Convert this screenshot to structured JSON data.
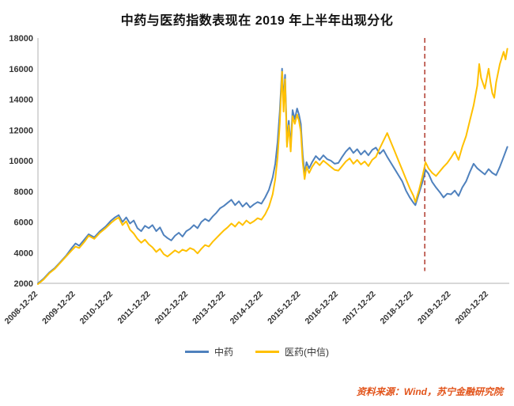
{
  "page": {
    "title": "中药与医药指数表现在 2019 年上半年出现分化",
    "source_note": "资料来源：Wind，苏宁金融研究院"
  },
  "chart_data": {
    "type": "line",
    "title": "中药与医药指数表现在 2019 年上半年出现分化",
    "xlabel": "",
    "ylabel": "",
    "x_unit": "years since 2008-12-22",
    "x_range": [
      0,
      12.55
    ],
    "ylim": [
      2000,
      18000
    ],
    "y_ticks": [
      2000,
      4000,
      6000,
      8000,
      10000,
      12000,
      14000,
      16000,
      18000
    ],
    "x_tick_positions": [
      0,
      1,
      2,
      3,
      4,
      5,
      6,
      7,
      8,
      9,
      10,
      11,
      12
    ],
    "x_tick_labels": [
      "2008-12-22",
      "2009-12-22",
      "2010-12-22",
      "2011-12-22",
      "2012-12-22",
      "2013-12-22",
      "2014-12-22",
      "2015-12-22",
      "2016-12-22",
      "2017-12-22",
      "2018-12-22",
      "2019-12-22",
      "2020-12-22"
    ],
    "grid": false,
    "legend_position": "bottom",
    "axis_color": "#b0b0b0",
    "tick_label_color": "#333333",
    "annotation_line": {
      "x": 10.3,
      "y_top": 18000,
      "y_bottom": 2800,
      "style": "dashed",
      "color": "#b03a2e"
    },
    "series": [
      {
        "name": "中药",
        "color": "#4f81bd",
        "points": [
          [
            0,
            2000
          ],
          [
            0.15,
            2300
          ],
          [
            0.3,
            2700
          ],
          [
            0.45,
            3000
          ],
          [
            0.6,
            3400
          ],
          [
            0.75,
            3800
          ],
          [
            0.9,
            4300
          ],
          [
            1,
            4600
          ],
          [
            1.1,
            4450
          ],
          [
            1.25,
            4900
          ],
          [
            1.35,
            5200
          ],
          [
            1.5,
            5000
          ],
          [
            1.65,
            5400
          ],
          [
            1.8,
            5700
          ],
          [
            1.95,
            6100
          ],
          [
            2.05,
            6300
          ],
          [
            2.15,
            6450
          ],
          [
            2.25,
            6000
          ],
          [
            2.35,
            6300
          ],
          [
            2.45,
            5900
          ],
          [
            2.55,
            6100
          ],
          [
            2.65,
            5600
          ],
          [
            2.75,
            5400
          ],
          [
            2.85,
            5750
          ],
          [
            2.95,
            5600
          ],
          [
            3.05,
            5800
          ],
          [
            3.15,
            5400
          ],
          [
            3.25,
            5650
          ],
          [
            3.35,
            5150
          ],
          [
            3.45,
            4950
          ],
          [
            3.55,
            4800
          ],
          [
            3.65,
            5100
          ],
          [
            3.75,
            5300
          ],
          [
            3.85,
            5050
          ],
          [
            3.95,
            5400
          ],
          [
            4.05,
            5550
          ],
          [
            4.15,
            5800
          ],
          [
            4.25,
            5600
          ],
          [
            4.35,
            6000
          ],
          [
            4.45,
            6200
          ],
          [
            4.55,
            6050
          ],
          [
            4.65,
            6350
          ],
          [
            4.75,
            6600
          ],
          [
            4.85,
            6900
          ],
          [
            4.95,
            7050
          ],
          [
            5.05,
            7250
          ],
          [
            5.15,
            7450
          ],
          [
            5.25,
            7100
          ],
          [
            5.35,
            7350
          ],
          [
            5.45,
            7000
          ],
          [
            5.55,
            7250
          ],
          [
            5.65,
            6950
          ],
          [
            5.75,
            7150
          ],
          [
            5.85,
            7300
          ],
          [
            5.95,
            7200
          ],
          [
            6.05,
            7600
          ],
          [
            6.15,
            8100
          ],
          [
            6.25,
            8900
          ],
          [
            6.32,
            9800
          ],
          [
            6.38,
            11200
          ],
          [
            6.44,
            13200
          ],
          [
            6.5,
            16000
          ],
          [
            6.54,
            13800
          ],
          [
            6.58,
            15600
          ],
          [
            6.63,
            11200
          ],
          [
            6.68,
            12600
          ],
          [
            6.73,
            10900
          ],
          [
            6.78,
            13300
          ],
          [
            6.84,
            12700
          ],
          [
            6.9,
            13400
          ],
          [
            6.95,
            13000
          ],
          [
            7,
            12400
          ],
          [
            7.05,
            10400
          ],
          [
            7.1,
            9100
          ],
          [
            7.15,
            9900
          ],
          [
            7.22,
            9500
          ],
          [
            7.3,
            9900
          ],
          [
            7.4,
            10300
          ],
          [
            7.5,
            10050
          ],
          [
            7.6,
            10350
          ],
          [
            7.7,
            10100
          ],
          [
            7.8,
            10000
          ],
          [
            7.9,
            9800
          ],
          [
            8,
            9850
          ],
          [
            8.1,
            10250
          ],
          [
            8.2,
            10600
          ],
          [
            8.3,
            10850
          ],
          [
            8.4,
            10500
          ],
          [
            8.5,
            10750
          ],
          [
            8.6,
            10400
          ],
          [
            8.7,
            10650
          ],
          [
            8.8,
            10350
          ],
          [
            8.9,
            10700
          ],
          [
            9,
            10850
          ],
          [
            9.1,
            10450
          ],
          [
            9.2,
            10700
          ],
          [
            9.3,
            10250
          ],
          [
            9.4,
            9850
          ],
          [
            9.5,
            9450
          ],
          [
            9.6,
            9050
          ],
          [
            9.7,
            8650
          ],
          [
            9.8,
            8050
          ],
          [
            9.9,
            7600
          ],
          [
            10,
            7250
          ],
          [
            10.05,
            7100
          ],
          [
            10.15,
            7900
          ],
          [
            10.25,
            8700
          ],
          [
            10.32,
            9400
          ],
          [
            10.4,
            9150
          ],
          [
            10.5,
            8600
          ],
          [
            10.6,
            8250
          ],
          [
            10.7,
            7950
          ],
          [
            10.8,
            7600
          ],
          [
            10.9,
            7850
          ],
          [
            11,
            7800
          ],
          [
            11.1,
            8050
          ],
          [
            11.2,
            7700
          ],
          [
            11.3,
            8250
          ],
          [
            11.4,
            8650
          ],
          [
            11.5,
            9250
          ],
          [
            11.6,
            9800
          ],
          [
            11.7,
            9500
          ],
          [
            11.8,
            9300
          ],
          [
            11.9,
            9100
          ],
          [
            12,
            9450
          ],
          [
            12.1,
            9200
          ],
          [
            12.2,
            9050
          ],
          [
            12.3,
            9600
          ],
          [
            12.4,
            10250
          ],
          [
            12.5,
            10900
          ]
        ]
      },
      {
        "name": "医药(中信)",
        "color": "#ffc000",
        "points": [
          [
            0,
            1950
          ],
          [
            0.15,
            2250
          ],
          [
            0.3,
            2650
          ],
          [
            0.45,
            2950
          ],
          [
            0.6,
            3350
          ],
          [
            0.75,
            3750
          ],
          [
            0.9,
            4150
          ],
          [
            1,
            4400
          ],
          [
            1.1,
            4300
          ],
          [
            1.25,
            4750
          ],
          [
            1.35,
            5100
          ],
          [
            1.5,
            4900
          ],
          [
            1.65,
            5300
          ],
          [
            1.8,
            5600
          ],
          [
            1.95,
            5950
          ],
          [
            2.05,
            6150
          ],
          [
            2.15,
            6300
          ],
          [
            2.25,
            5800
          ],
          [
            2.35,
            6050
          ],
          [
            2.45,
            5500
          ],
          [
            2.55,
            5250
          ],
          [
            2.65,
            4900
          ],
          [
            2.75,
            4650
          ],
          [
            2.85,
            4850
          ],
          [
            2.95,
            4550
          ],
          [
            3.05,
            4350
          ],
          [
            3.15,
            4050
          ],
          [
            3.25,
            4250
          ],
          [
            3.35,
            3900
          ],
          [
            3.45,
            3750
          ],
          [
            3.55,
            3950
          ],
          [
            3.65,
            4150
          ],
          [
            3.75,
            4000
          ],
          [
            3.85,
            4200
          ],
          [
            3.95,
            4100
          ],
          [
            4.05,
            4300
          ],
          [
            4.15,
            4200
          ],
          [
            4.25,
            3950
          ],
          [
            4.35,
            4250
          ],
          [
            4.45,
            4500
          ],
          [
            4.55,
            4400
          ],
          [
            4.65,
            4700
          ],
          [
            4.75,
            4950
          ],
          [
            4.85,
            5200
          ],
          [
            4.95,
            5450
          ],
          [
            5.05,
            5650
          ],
          [
            5.15,
            5900
          ],
          [
            5.25,
            5700
          ],
          [
            5.35,
            6000
          ],
          [
            5.45,
            5800
          ],
          [
            5.55,
            6100
          ],
          [
            5.65,
            5900
          ],
          [
            5.75,
            6050
          ],
          [
            5.85,
            6250
          ],
          [
            5.95,
            6150
          ],
          [
            6.05,
            6500
          ],
          [
            6.15,
            7000
          ],
          [
            6.25,
            7800
          ],
          [
            6.32,
            8800
          ],
          [
            6.38,
            10200
          ],
          [
            6.44,
            12400
          ],
          [
            6.5,
            15800
          ],
          [
            6.54,
            13200
          ],
          [
            6.58,
            15300
          ],
          [
            6.63,
            10900
          ],
          [
            6.68,
            12300
          ],
          [
            6.73,
            10600
          ],
          [
            6.78,
            12900
          ],
          [
            6.84,
            12400
          ],
          [
            6.9,
            13000
          ],
          [
            6.95,
            12600
          ],
          [
            7,
            11900
          ],
          [
            7.05,
            9900
          ],
          [
            7.1,
            8800
          ],
          [
            7.15,
            9600
          ],
          [
            7.22,
            9200
          ],
          [
            7.3,
            9600
          ],
          [
            7.4,
            9950
          ],
          [
            7.5,
            9700
          ],
          [
            7.6,
            10000
          ],
          [
            7.7,
            9800
          ],
          [
            7.8,
            9600
          ],
          [
            7.9,
            9400
          ],
          [
            8,
            9350
          ],
          [
            8.1,
            9650
          ],
          [
            8.2,
            9950
          ],
          [
            8.3,
            10150
          ],
          [
            8.4,
            9800
          ],
          [
            8.5,
            10050
          ],
          [
            8.6,
            9750
          ],
          [
            8.7,
            9950
          ],
          [
            8.8,
            9650
          ],
          [
            8.9,
            10050
          ],
          [
            9,
            10250
          ],
          [
            9.1,
            10800
          ],
          [
            9.2,
            11300
          ],
          [
            9.3,
            11800
          ],
          [
            9.4,
            11200
          ],
          [
            9.5,
            10600
          ],
          [
            9.6,
            10000
          ],
          [
            9.7,
            9400
          ],
          [
            9.8,
            8800
          ],
          [
            9.9,
            8200
          ],
          [
            10,
            7700
          ],
          [
            10.05,
            7300
          ],
          [
            10.15,
            8100
          ],
          [
            10.25,
            9100
          ],
          [
            10.32,
            9900
          ],
          [
            10.4,
            9500
          ],
          [
            10.5,
            9200
          ],
          [
            10.6,
            9000
          ],
          [
            10.7,
            9300
          ],
          [
            10.8,
            9600
          ],
          [
            10.9,
            9850
          ],
          [
            11,
            10200
          ],
          [
            11.1,
            10600
          ],
          [
            11.2,
            10050
          ],
          [
            11.3,
            10900
          ],
          [
            11.4,
            11600
          ],
          [
            11.5,
            12600
          ],
          [
            11.6,
            13600
          ],
          [
            11.7,
            14900
          ],
          [
            11.75,
            16300
          ],
          [
            11.8,
            15400
          ],
          [
            11.9,
            14700
          ],
          [
            12,
            16000
          ],
          [
            12.05,
            15100
          ],
          [
            12.1,
            14400
          ],
          [
            12.15,
            14100
          ],
          [
            12.2,
            15100
          ],
          [
            12.3,
            16300
          ],
          [
            12.4,
            17100
          ],
          [
            12.45,
            16600
          ],
          [
            12.5,
            17300
          ]
        ]
      }
    ],
    "source_note": "资料来源：Wind，苏宁金融研究院",
    "source_color": "#e2541b"
  }
}
